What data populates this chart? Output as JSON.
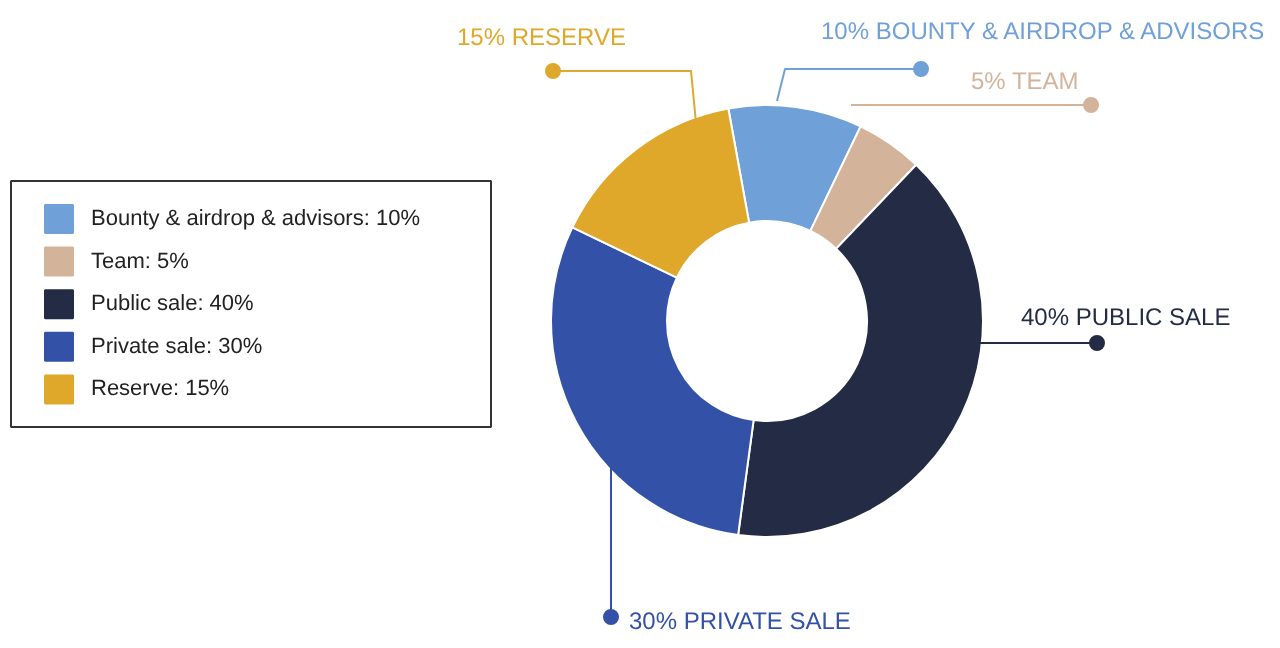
{
  "chart_data": {
    "type": "donut",
    "categories": [
      "Bounty & airdrop & advisors: 10%",
      "Team: 5%",
      "Public sale: 40%",
      "Private sale: 30%",
      "Reserve: 15%"
    ],
    "values": [
      10,
      5,
      40,
      30,
      15
    ],
    "colors": [
      "#6fa0d8",
      "#d3b49a",
      "#232b45",
      "#3451a8",
      "#e0a82a"
    ],
    "annotations": [
      "10%  BOUNTY & AIRDROP & ADVISORS",
      "5% TEAM",
      "40% PUBLIC SALE",
      "30% PRIVATE SALE",
      "15% RESERVE"
    ],
    "legend": "left"
  }
}
